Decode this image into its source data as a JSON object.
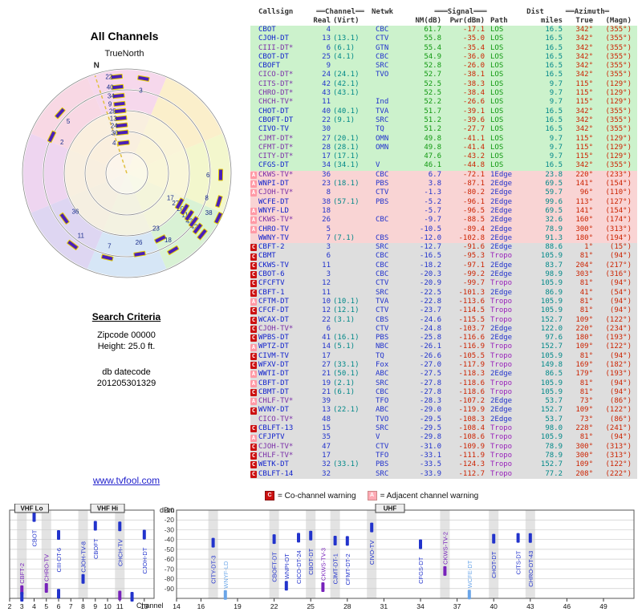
{
  "radar": {
    "title": "All Channels",
    "north_label": "TrueNorth",
    "n": "N",
    "markers": [
      {
        "label": "22",
        "az": 354,
        "r": 121,
        "side": "left"
      },
      {
        "label": "40",
        "az": 354,
        "r": 108,
        "side": "left"
      },
      {
        "label": "34",
        "az": 354,
        "r": 97,
        "side": "left"
      },
      {
        "label": "9",
        "az": 354,
        "r": 87,
        "side": "left"
      },
      {
        "label": "25",
        "az": 354,
        "r": 78,
        "side": "left"
      },
      {
        "label": "13",
        "az": 354,
        "r": 69,
        "side": "left"
      },
      {
        "label": "24",
        "az": 354,
        "r": 60,
        "side": "left"
      },
      {
        "label": "30",
        "az": 354,
        "r": 51,
        "side": "left"
      },
      {
        "label": "4",
        "az": 354,
        "r": 38,
        "side": "left"
      },
      {
        "label": "3",
        "az": 10,
        "r": 120,
        "side": "in"
      },
      {
        "label": "5",
        "az": 312,
        "r": 112,
        "side": "in"
      },
      {
        "label": "2",
        "az": 296,
        "r": 104,
        "side": "in"
      },
      {
        "label": "36",
        "az": 234,
        "r": 96,
        "side": "in"
      },
      {
        "label": "11",
        "az": 217,
        "r": 112,
        "side": "in"
      },
      {
        "label": "7",
        "az": 193,
        "r": 108,
        "side": "in"
      },
      {
        "label": "26",
        "az": 171,
        "r": 102,
        "side": "in"
      },
      {
        "label": "23",
        "az": 153,
        "r": 92,
        "side": "in"
      },
      {
        "label": "18",
        "az": 149,
        "r": 112,
        "side": "in"
      },
      {
        "label": "42",
        "az": 129,
        "r": 121,
        "side": "in"
      },
      {
        "label": "43",
        "az": 128,
        "r": 112,
        "side": "in"
      },
      {
        "label": "11",
        "az": 126,
        "r": 103,
        "side": "in"
      },
      {
        "label": "20",
        "az": 124,
        "r": 94,
        "side": "in"
      },
      {
        "label": "27",
        "az": 122,
        "r": 85,
        "side": "in"
      },
      {
        "label": "17",
        "az": 120,
        "r": 76,
        "side": "in"
      },
      {
        "label": "38",
        "az": 116,
        "r": 127,
        "side": "in"
      },
      {
        "label": "8",
        "az": 107,
        "r": 120,
        "side": "in"
      },
      {
        "label": "6",
        "az": 91,
        "r": 117,
        "side": "in"
      }
    ]
  },
  "search": {
    "heading": "Search Criteria",
    "zipcode": "Zipcode 00000",
    "height": "Height: 25.0 ft.",
    "db_label": "db datecode",
    "db_value": "201205301329"
  },
  "site_link": "www.tvfool.com",
  "table": {
    "h1": {
      "callsign": "Callsign",
      "channel": "══Channel══",
      "netwk": "Netwk",
      "signal": "═══Signal═══",
      "dist": "Dist",
      "azimuth": "══Azimuth═"
    },
    "h2": {
      "real": "Real",
      "virt": "(Virt)",
      "nm": "NM(dB)",
      "pwr": "Pwr(dBm)",
      "path": "Path",
      "miles": "miles",
      "true": "True",
      "magn": "(Magn)"
    },
    "rows": [
      [
        "CBOT",
        "4",
        "",
        "CBC",
        "61.7",
        "-17.1",
        "LOS",
        "16.5",
        "342°",
        "(355°)",
        "green",
        ""
      ],
      [
        "CJOH-DT",
        "13",
        "(13.1)",
        "CTV",
        "55.8",
        "-35.0",
        "LOS",
        "16.5",
        "342°",
        "(355°)",
        "green",
        ""
      ],
      [
        "CIII-DT*",
        "6",
        "(6.1)",
        "GTN",
        "55.4",
        "-35.4",
        "LOS",
        "16.5",
        "342°",
        "(355°)",
        "green",
        ""
      ],
      [
        "CBOT-DT",
        "25",
        "(4.1)",
        "CBC",
        "54.9",
        "-36.0",
        "LOS",
        "16.5",
        "342°",
        "(355°)",
        "green",
        ""
      ],
      [
        "CBOFT",
        "9",
        "",
        "SRC",
        "52.8",
        "-26.0",
        "LOS",
        "16.5",
        "342°",
        "(355°)",
        "green",
        ""
      ],
      [
        "CICO-DT*",
        "24",
        "(24.1)",
        "TVO",
        "52.7",
        "-38.1",
        "LOS",
        "16.5",
        "342°",
        "(355°)",
        "green",
        ""
      ],
      [
        "CITS-DT*",
        "42",
        "(42.1)",
        "",
        "52.5",
        "-38.3",
        "LOS",
        "9.7",
        "115°",
        "(129°)",
        "green",
        ""
      ],
      [
        "CHRO-DT*",
        "43",
        "(43.1)",
        "",
        "52.5",
        "-38.4",
        "LOS",
        "9.7",
        "115°",
        "(129°)",
        "green",
        ""
      ],
      [
        "CHCH-TV*",
        "11",
        "",
        "Ind",
        "52.2",
        "-26.6",
        "LOS",
        "9.7",
        "115°",
        "(129°)",
        "green",
        ""
      ],
      [
        "CHOT-DT",
        "40",
        "(40.1)",
        "TVA",
        "51.7",
        "-39.1",
        "LOS",
        "16.5",
        "342°",
        "(355°)",
        "green",
        ""
      ],
      [
        "CBOFT-DT",
        "22",
        "(9.1)",
        "SRC",
        "51.2",
        "-39.6",
        "LOS",
        "16.5",
        "342°",
        "(355°)",
        "green",
        ""
      ],
      [
        "CIVO-TV",
        "30",
        "",
        "TQ",
        "51.2",
        "-27.7",
        "LOS",
        "16.5",
        "342°",
        "(355°)",
        "green",
        ""
      ],
      [
        "CJMT-DT*",
        "27",
        "(20.1)",
        "OMN",
        "49.8",
        "-41.1",
        "LOS",
        "9.7",
        "115°",
        "(129°)",
        "green",
        ""
      ],
      [
        "CFMT-DT*",
        "28",
        "(28.1)",
        "OMN",
        "49.8",
        "-41.4",
        "LOS",
        "9.7",
        "115°",
        "(129°)",
        "green",
        ""
      ],
      [
        "CITY-DT*",
        "17",
        "(17.1)",
        "",
        "47.6",
        "-43.2",
        "LOS",
        "9.7",
        "115°",
        "(129°)",
        "green",
        ""
      ],
      [
        "CFGS-DT",
        "34",
        "(34.1)",
        "V",
        "46.1",
        "-44.8",
        "LOS",
        "16.5",
        "342°",
        "(355°)",
        "green",
        ""
      ],
      [
        "CKWS-TV*",
        "36",
        "",
        "CBC",
        "6.7",
        "-72.1",
        "1Edge",
        "23.8",
        "220°",
        "(233°)",
        "pink",
        "A"
      ],
      [
        "WNPI-DT",
        "23",
        "(18.1)",
        "PBS",
        "3.8",
        "-87.1",
        "2Edge",
        "69.5",
        "141°",
        "(154°)",
        "pink",
        "A"
      ],
      [
        "CJOH-TV*",
        "8",
        "",
        "CTV",
        "-1.3",
        "-80.2",
        "2Edge",
        "59.7",
        "96°",
        "(110°)",
        "pink",
        "A"
      ],
      [
        "WCFE-DT",
        "38",
        "(57.1)",
        "PBS",
        "-5.2",
        "-96.1",
        "2Edge",
        "99.6",
        "113°",
        "(127°)",
        "pink",
        ""
      ],
      [
        "WNYF-LD",
        "18",
        "",
        "",
        "-5.7",
        "-96.5",
        "2Edge",
        "69.5",
        "141°",
        "(154°)",
        "pink",
        "A"
      ],
      [
        "CKWS-TV*",
        "26",
        "",
        "CBC",
        "-9.7",
        "-88.5",
        "2Edge",
        "32.6",
        "160°",
        "(174°)",
        "pink",
        "A"
      ],
      [
        "CHRO-TV",
        "5",
        "",
        "",
        "-10.5",
        "-89.4",
        "2Edge",
        "78.9",
        "300°",
        "(313°)",
        "pink",
        "A"
      ],
      [
        "WWNY-TV",
        "7",
        "(7.1)",
        "CBS",
        "-12.0",
        "-102.8",
        "2Edge",
        "91.3",
        "180°",
        "(194°)",
        "pink",
        ""
      ],
      [
        "CBFT-2",
        "3",
        "",
        "SRC",
        "-12.7",
        "-91.6",
        "2Edge",
        "88.6",
        "1°",
        "(15°)",
        "gray",
        "C"
      ],
      [
        "CBMT",
        "6",
        "",
        "CBC",
        "-16.5",
        "-95.3",
        "Tropo",
        "105.9",
        "81°",
        "(94°)",
        "gray",
        "C"
      ],
      [
        "CKWS-TV",
        "11",
        "",
        "CBC",
        "-18.2",
        "-97.1",
        "2Edge",
        "83.7",
        "204°",
        "(217°)",
        "gray",
        "C"
      ],
      [
        "CBOT-6",
        "3",
        "",
        "CBC",
        "-20.3",
        "-99.2",
        "2Edge",
        "98.9",
        "303°",
        "(316°)",
        "gray",
        "C"
      ],
      [
        "CFCFTV",
        "12",
        "",
        "CTV",
        "-20.9",
        "-99.7",
        "Tropo",
        "105.9",
        "81°",
        "(94°)",
        "gray",
        "C"
      ],
      [
        "CBFT-1",
        "11",
        "",
        "SRC",
        "-22.5",
        "-101.3",
        "2Edge",
        "86.9",
        "41°",
        "(54°)",
        "gray",
        "C"
      ],
      [
        "CFTM-DT",
        "10",
        "(10.1)",
        "TVA",
        "-22.8",
        "-113.6",
        "Tropo",
        "105.9",
        "81°",
        "(94°)",
        "gray",
        "A"
      ],
      [
        "CFCF-DT",
        "12",
        "(12.1)",
        "CTV",
        "-23.7",
        "-114.5",
        "Tropo",
        "105.9",
        "81°",
        "(94°)",
        "gray",
        "C"
      ],
      [
        "WCAX-DT",
        "22",
        "(3.1)",
        "CBS",
        "-24.6",
        "-115.5",
        "Tropo",
        "152.7",
        "109°",
        "(122°)",
        "gray",
        "C"
      ],
      [
        "CJOH-TV*",
        "6",
        "",
        "CTV",
        "-24.8",
        "-103.7",
        "2Edge",
        "122.0",
        "220°",
        "(234°)",
        "gray",
        "C"
      ],
      [
        "WPBS-DT",
        "41",
        "(16.1)",
        "PBS",
        "-25.8",
        "-116.6",
        "2Edge",
        "97.6",
        "180°",
        "(193°)",
        "gray",
        "C"
      ],
      [
        "WPTZ-DT",
        "14",
        "(5.1)",
        "NBC",
        "-26.1",
        "-116.9",
        "Tropo",
        "152.7",
        "109°",
        "(122°)",
        "gray",
        "A"
      ],
      [
        "CIVM-TV",
        "17",
        "",
        "TQ",
        "-26.6",
        "-105.5",
        "Tropo",
        "105.9",
        "81°",
        "(94°)",
        "gray",
        "C"
      ],
      [
        "WFXV-DT",
        "27",
        "(33.1)",
        "Fox",
        "-27.0",
        "-117.9",
        "Tropo",
        "149.8",
        "169°",
        "(182°)",
        "gray",
        "C"
      ],
      [
        "WWTI-DT",
        "21",
        "(50.1)",
        "ABC",
        "-27.5",
        "-118.3",
        "2Edge",
        "86.5",
        "179°",
        "(193°)",
        "gray",
        "A"
      ],
      [
        "CBFT-DT",
        "19",
        "(2.1)",
        "SRC",
        "-27.8",
        "-118.6",
        "Tropo",
        "105.9",
        "81°",
        "(94°)",
        "gray",
        "A"
      ],
      [
        "CBMT-DT",
        "21",
        "(6.1)",
        "CBC",
        "-27.8",
        "-118.6",
        "Tropo",
        "105.9",
        "81°",
        "(94°)",
        "gray",
        "C"
      ],
      [
        "CHLF-TV*",
        "39",
        "",
        "TFO",
        "-28.3",
        "-107.2",
        "2Edge",
        "53.7",
        "73°",
        "(86°)",
        "gray",
        "A"
      ],
      [
        "WVNY-DT",
        "13",
        "(22.1)",
        "ABC",
        "-29.0",
        "-119.9",
        "2Edge",
        "152.7",
        "109°",
        "(122°)",
        "gray",
        "C"
      ],
      [
        "CICO-TV*",
        "48",
        "",
        "TVO",
        "-29.5",
        "-108.3",
        "2Edge",
        "53.7",
        "73°",
        "(86°)",
        "gray",
        ""
      ],
      [
        "CBLFT-13",
        "15",
        "",
        "SRC",
        "-29.5",
        "-108.4",
        "Tropo",
        "98.0",
        "228°",
        "(241°)",
        "gray",
        "C"
      ],
      [
        "CFJPTV",
        "35",
        "",
        "V",
        "-29.8",
        "-108.6",
        "Tropo",
        "105.9",
        "81°",
        "(94°)",
        "gray",
        "A"
      ],
      [
        "CJOH-TV*",
        "47",
        "",
        "CTV",
        "-31.0",
        "-109.9",
        "Tropo",
        "78.9",
        "300°",
        "(313°)",
        "gray",
        "C"
      ],
      [
        "CHLF-TV*",
        "17",
        "",
        "TFO",
        "-33.1",
        "-111.9",
        "Tropo",
        "78.9",
        "300°",
        "(313°)",
        "gray",
        "C"
      ],
      [
        "WETK-DT",
        "32",
        "(33.1)",
        "PBS",
        "-33.5",
        "-124.3",
        "Tropo",
        "152.7",
        "109°",
        "(122°)",
        "gray",
        "C"
      ],
      [
        "CBLFT-14",
        "32",
        "",
        "SRC",
        "-33.9",
        "-112.7",
        "Tropo",
        "77.2",
        "208°",
        "(222°)",
        "gray",
        "C"
      ]
    ]
  },
  "legend": {
    "co_letter": "C",
    "co_text": "= Co-channel warning",
    "adj_letter": "A",
    "adj_text": "= Adjacent channel warning"
  },
  "charts": {
    "dbm_label": "dBm",
    "channel_label": "Channel",
    "y_ticks": [
      -10,
      -20,
      -30,
      -40,
      -50,
      -60,
      -70,
      -80,
      -90
    ],
    "vhf": {
      "band_labels": [
        "VHF Lo",
        "VHF Hi"
      ],
      "x_ticks": [
        2,
        3,
        4,
        5,
        6,
        7,
        8,
        9,
        10,
        11,
        13
      ],
      "ch_min": 2,
      "ch_max": 13.8,
      "stations": [
        {
          "label": "CBOT",
          "ch": 4,
          "dbm": -17.1,
          "side": "below",
          "color": "#2233cc"
        },
        {
          "label": "CIII-DT-6",
          "ch": 6,
          "dbm": -35.4,
          "side": "below",
          "color": "#2233cc"
        },
        {
          "label": "CBOFT",
          "ch": 9,
          "dbm": -26.0,
          "side": "below",
          "color": "#2233cc"
        },
        {
          "label": "CHCH-TV",
          "ch": 11,
          "dbm": -26.6,
          "side": "below",
          "color": "#2233cc"
        },
        {
          "label": "CJOH-DT",
          "ch": 13,
          "dbm": -35.0,
          "side": "below",
          "color": "#2233cc"
        },
        {
          "label": "CBFT-2",
          "ch": 3,
          "dbm": -91.6,
          "side": "above",
          "color": "#7722bb"
        },
        {
          "label": "CHRO-TV",
          "ch": 5,
          "dbm": -89.4,
          "side": "above",
          "color": "#7722bb"
        },
        {
          "label": "CJOH-TV-8",
          "ch": 8,
          "dbm": -80.2,
          "side": "above",
          "color": "#2233cc"
        },
        {
          "label": "",
          "ch": 6,
          "dbm": -95.3,
          "side": "above",
          "color": "#2233cc"
        },
        {
          "label": "",
          "ch": 11,
          "dbm": -97.1,
          "side": "above",
          "color": "#7722bb"
        },
        {
          "label": "",
          "ch": 3,
          "dbm": -99.2,
          "side": "above",
          "color": "#2233cc"
        },
        {
          "label": "",
          "ch": 12,
          "dbm": -99.7,
          "side": "above",
          "color": "#2233cc"
        }
      ]
    },
    "uhf": {
      "band_label": "UHF",
      "x_ticks": [
        14,
        16,
        19,
        22,
        25,
        28,
        31,
        34,
        37,
        40,
        43,
        46,
        49
      ],
      "ch_min": 14,
      "ch_max": 51.5,
      "stations": [
        {
          "label": "CITY-DT-3",
          "ch": 17,
          "dbm": -43.2,
          "side": "below",
          "color": "#2233cc"
        },
        {
          "label": "WNYF-LD",
          "ch": 18,
          "dbm": -96.5,
          "side": "above",
          "color": "#6aa5e8"
        },
        {
          "label": "CBOFT-DT",
          "ch": 22,
          "dbm": -39.6,
          "side": "below",
          "color": "#2233cc"
        },
        {
          "label": "WNPI-DT",
          "ch": 23,
          "dbm": -87.1,
          "side": "above",
          "color": "#2233cc"
        },
        {
          "label": "CICO-DT-24",
          "ch": 24,
          "dbm": -38.1,
          "side": "below",
          "color": "#2233cc"
        },
        {
          "label": "CBOT-DT",
          "ch": 25,
          "dbm": -36.0,
          "side": "below",
          "color": "#2233cc"
        },
        {
          "label": "CKWS-TV-3",
          "ch": 26,
          "dbm": -88.5,
          "side": "above",
          "color": "#7722bb"
        },
        {
          "label": "CJMT-DT-1",
          "ch": 27,
          "dbm": -41.1,
          "side": "below",
          "color": "#2233cc"
        },
        {
          "label": "CFMT-DT-2",
          "ch": 28,
          "dbm": -41.4,
          "side": "below",
          "color": "#2233cc"
        },
        {
          "label": "CIVO-TV",
          "ch": 30,
          "dbm": -27.7,
          "side": "below",
          "color": "#2233cc"
        },
        {
          "label": "CFGS-DT",
          "ch": 34,
          "dbm": -44.8,
          "side": "below",
          "color": "#2233cc"
        },
        {
          "label": "CKWS-TV-2",
          "ch": 36,
          "dbm": -72.1,
          "side": "above",
          "color": "#7722bb"
        },
        {
          "label": "WCFE-DT",
          "ch": 38,
          "dbm": -96.1,
          "side": "above",
          "color": "#6aa5e8"
        },
        {
          "label": "CHOT-DT",
          "ch": 40,
          "dbm": -39.1,
          "side": "below",
          "color": "#2233cc"
        },
        {
          "label": "CITS-DT",
          "ch": 42,
          "dbm": -38.3,
          "side": "below",
          "color": "#2233cc"
        },
        {
          "label": "CHRO-DT-43",
          "ch": 43,
          "dbm": -38.4,
          "side": "below",
          "color": "#2233cc"
        }
      ]
    }
  }
}
